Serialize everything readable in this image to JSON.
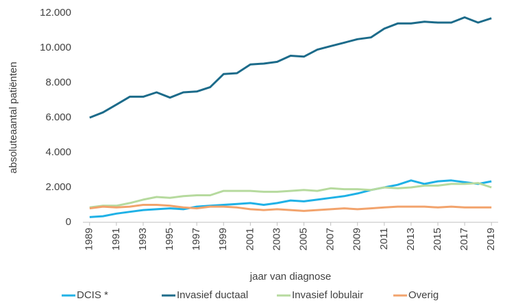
{
  "chart_data": {
    "type": "line",
    "xlabel": "jaar van diagnose",
    "ylabel": "absoluteaantal patiënten",
    "x": [
      1989,
      1990,
      1991,
      1992,
      1993,
      1994,
      1995,
      1996,
      1997,
      1998,
      1999,
      2000,
      2001,
      2002,
      2003,
      2004,
      2005,
      2006,
      2007,
      2008,
      2009,
      2010,
      2011,
      2012,
      2013,
      2014,
      2015,
      2016,
      2017,
      2018,
      2019
    ],
    "xlim": [
      1988.5,
      2019.5
    ],
    "xticks": [
      1989,
      1991,
      1993,
      1995,
      1997,
      1999,
      2001,
      2003,
      2005,
      2007,
      2009,
      2011,
      2013,
      2015,
      2017,
      2019
    ],
    "ylim": [
      0,
      12000
    ],
    "yticks": [
      0,
      {
        "value": 2000,
        "label": "2.000"
      },
      {
        "value": 4000,
        "label": "4.000"
      },
      {
        "value": 6000,
        "label": "6.000"
      },
      {
        "value": 8000,
        "label": "8.000"
      },
      {
        "value": 10000,
        "label": "10.000"
      },
      {
        "value": 12000,
        "label": "12.000"
      }
    ],
    "grid": false,
    "legend": "bottom",
    "series": [
      {
        "name": "DCIS *",
        "color": "#1fb1e6",
        "values": [
          300,
          350,
          500,
          600,
          700,
          750,
          800,
          750,
          900,
          950,
          1000,
          1050,
          1100,
          1000,
          1100,
          1250,
          1200,
          1300,
          1400,
          1500,
          1650,
          1850,
          2000,
          2150,
          2400,
          2200,
          2350,
          2400,
          2300,
          2200,
          2350
        ]
      },
      {
        "name": "Invasief ductaal",
        "color": "#1c6b8a",
        "values": [
          6000,
          6300,
          6750,
          7200,
          7200,
          7450,
          7150,
          7450,
          7500,
          7750,
          8500,
          8550,
          9050,
          9100,
          9200,
          9550,
          9500,
          9900,
          10100,
          10300,
          10500,
          10600,
          11100,
          11400,
          11400,
          11500,
          11450,
          11450,
          11750,
          11450,
          11700
        ]
      },
      {
        "name": "Invasief lobulair",
        "color": "#b6da9e",
        "values": [
          850,
          950,
          950,
          1100,
          1300,
          1450,
          1400,
          1500,
          1550,
          1550,
          1800,
          1800,
          1800,
          1750,
          1750,
          1800,
          1850,
          1800,
          1950,
          1900,
          1900,
          1850,
          2000,
          1950,
          2000,
          2100,
          2100,
          2200,
          2200,
          2250,
          2000
        ]
      },
      {
        "name": "Overig",
        "color": "#f2a36c",
        "values": [
          800,
          900,
          850,
          900,
          1000,
          1000,
          950,
          850,
          800,
          900,
          900,
          850,
          750,
          700,
          750,
          700,
          650,
          700,
          750,
          800,
          750,
          800,
          850,
          900,
          900,
          900,
          850,
          900,
          850,
          850,
          850
        ]
      }
    ]
  }
}
